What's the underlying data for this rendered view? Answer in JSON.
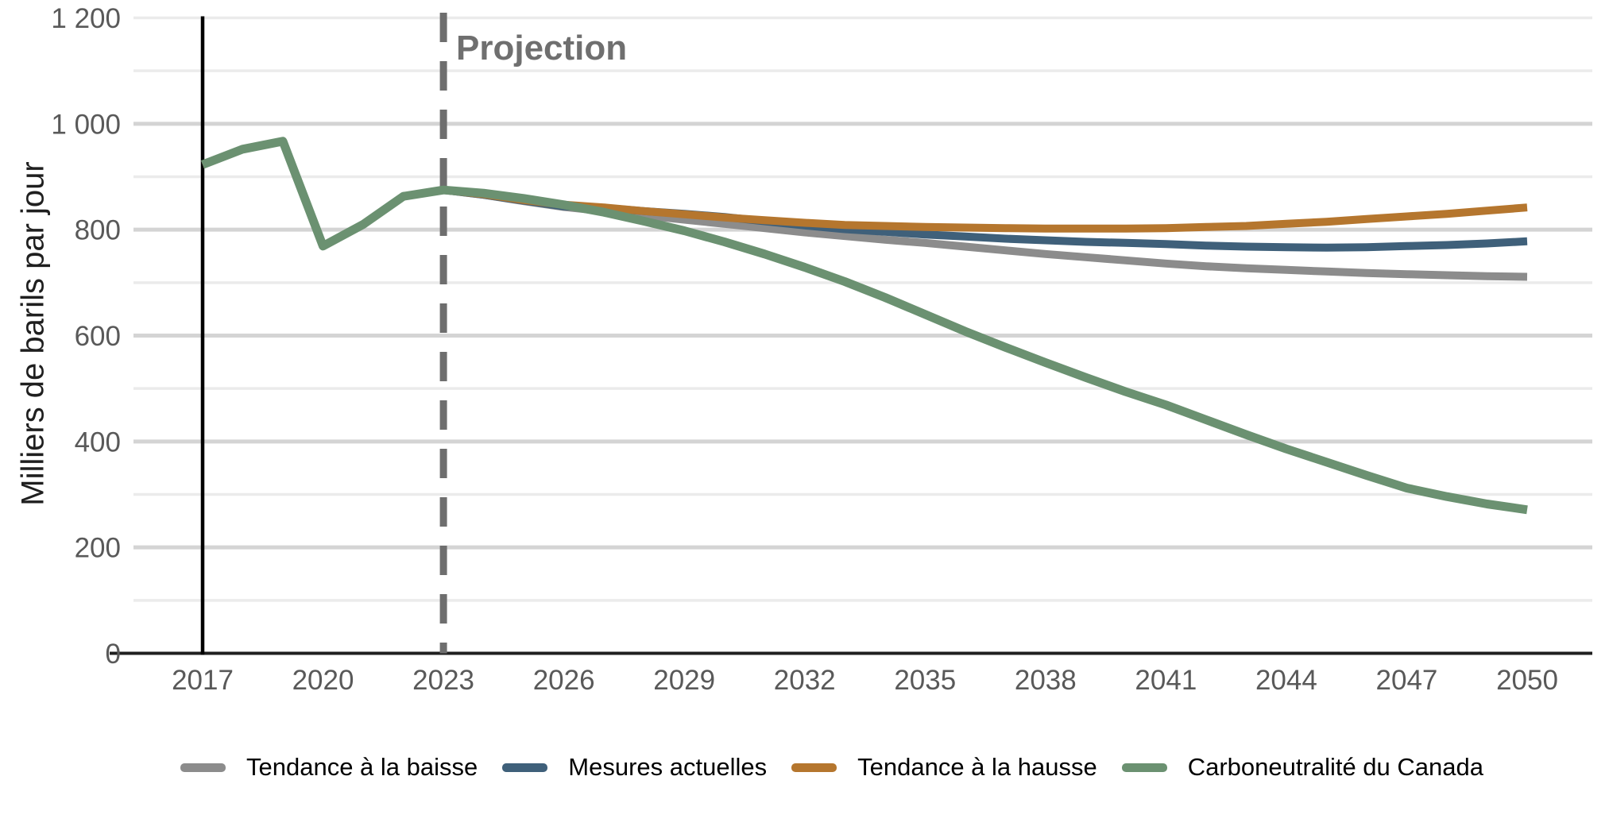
{
  "chart_data": {
    "type": "line",
    "title": "",
    "ylabel": "Milliers de barils par jour",
    "xlabel": "",
    "projection_label": "Projection",
    "projection_year": 2023,
    "history_marker_year": 2017,
    "ylim": [
      0,
      1200
    ],
    "xlim": [
      2017,
      2050
    ],
    "grid": "horizontal, minor every 100 (light), major every 200 (darker)",
    "legend_position": "bottom",
    "x": [
      2017,
      2018,
      2019,
      2020,
      2021,
      2022,
      2023,
      2024,
      2025,
      2026,
      2027,
      2028,
      2029,
      2030,
      2031,
      2032,
      2033,
      2034,
      2035,
      2036,
      2037,
      2038,
      2039,
      2040,
      2041,
      2042,
      2043,
      2044,
      2045,
      2046,
      2047,
      2048,
      2049,
      2050
    ],
    "x_ticks": [
      "2017",
      "2020",
      "2023",
      "2026",
      "2029",
      "2032",
      "2035",
      "2038",
      "2041",
      "2044",
      "2047",
      "2050"
    ],
    "y_ticks": [
      {
        "value": 0,
        "label": "0"
      },
      {
        "value": 200,
        "label": "200"
      },
      {
        "value": 400,
        "label": "400"
      },
      {
        "value": 600,
        "label": "600"
      },
      {
        "value": 800,
        "label": "800"
      },
      {
        "value": 1000,
        "label": "1 000"
      },
      {
        "value": 1200,
        "label": "1 200"
      }
    ],
    "series": [
      {
        "name": "Tendance à la baisse",
        "color": "#8C8C8C",
        "values": [
          923,
          952,
          967,
          769,
          810,
          863,
          875,
          866,
          854,
          843,
          835,
          827,
          819,
          811,
          803,
          795,
          788,
          781,
          775,
          768,
          761,
          754,
          748,
          742,
          736,
          731,
          727,
          724,
          721,
          718,
          716,
          714,
          712,
          711
        ]
      },
      {
        "name": "Mesures actuelles",
        "color": "#3F607A",
        "values": [
          923,
          952,
          967,
          769,
          810,
          863,
          875,
          866,
          855,
          844,
          841,
          835,
          830,
          824,
          816,
          808,
          801,
          796,
          791,
          787,
          783,
          780,
          777,
          775,
          773,
          770,
          768,
          767,
          766,
          767,
          769,
          771,
          774,
          778
        ]
      },
      {
        "name": "Tendance à la hausse",
        "color": "#B5762E",
        "values": [
          923,
          952,
          967,
          769,
          810,
          863,
          875,
          867,
          856,
          847,
          842,
          835,
          829,
          823,
          818,
          813,
          809,
          807,
          805,
          804,
          803,
          802,
          802,
          802,
          803,
          805,
          807,
          811,
          815,
          820,
          825,
          830,
          836,
          842
        ]
      },
      {
        "name": "Carboneutralité du Canada",
        "color": "#6B9171",
        "values": [
          923,
          952,
          967,
          769,
          810,
          863,
          875,
          869,
          859,
          847,
          833,
          816,
          798,
          777,
          754,
          729,
          702,
          672,
          640,
          608,
          578,
          549,
          521,
          494,
          469,
          441,
          413,
          386,
          361,
          336,
          312,
          296,
          282,
          271
        ]
      }
    ]
  },
  "style_colors": {
    "grid_minor": "#EBEBEB",
    "grid_major": "#D4D4D4",
    "axis_line": "#1F1F1F",
    "history_marker_line": "#000000",
    "projection_line": "#6E6E6E",
    "tick_label": "#595959"
  }
}
